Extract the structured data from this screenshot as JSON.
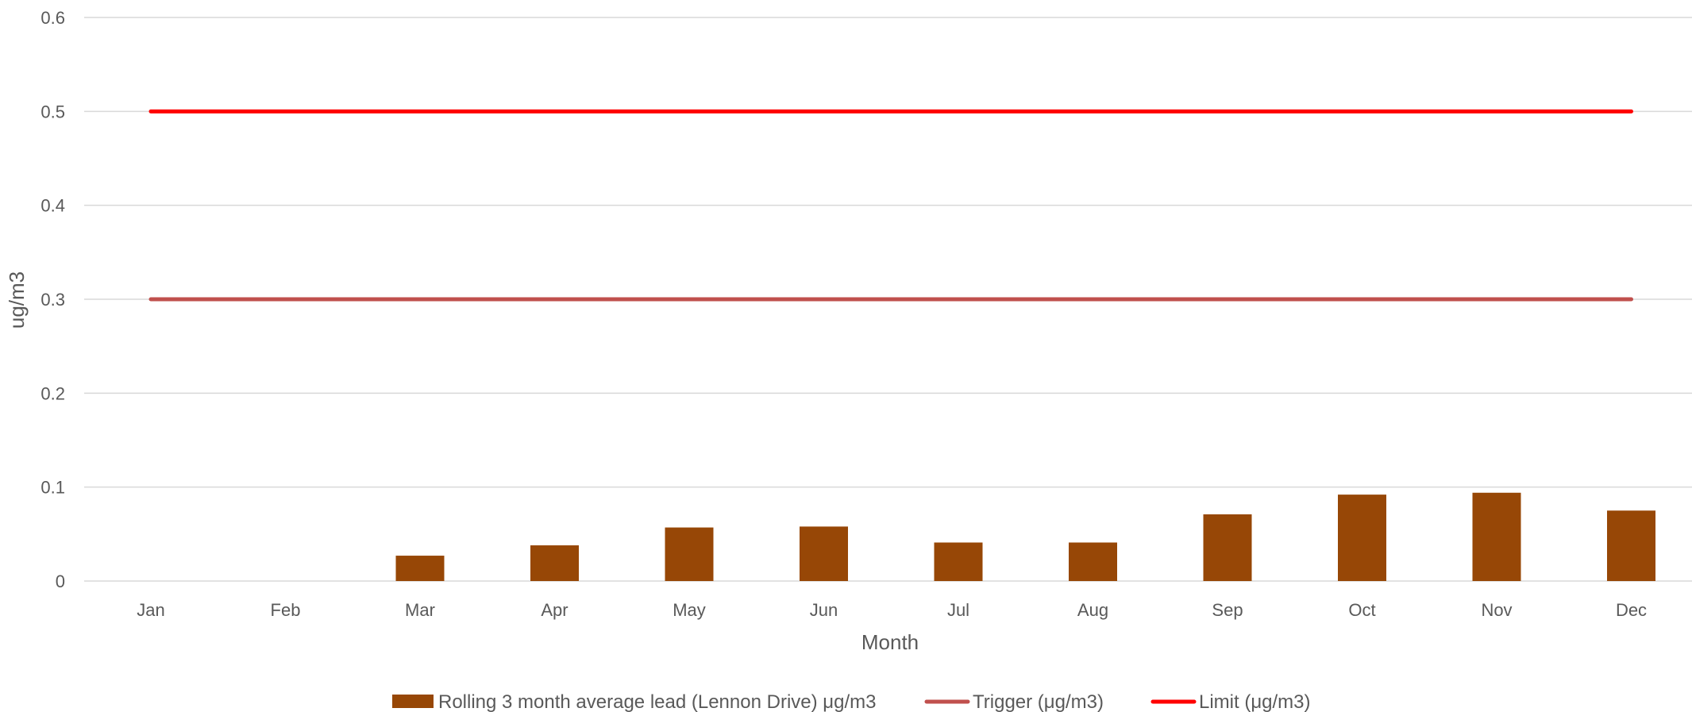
{
  "chart_data": {
    "type": "bar",
    "categories": [
      "Jan",
      "Feb",
      "Mar",
      "Apr",
      "May",
      "Jun",
      "Jul",
      "Aug",
      "Sep",
      "Oct",
      "Nov",
      "Dec"
    ],
    "series": [
      {
        "name": "Rolling 3 month average lead (Lennon Drive) μg/m3",
        "type": "bar",
        "color": "#974706",
        "values": [
          null,
          null,
          0.027,
          0.038,
          0.057,
          0.058,
          0.041,
          0.041,
          0.071,
          0.092,
          0.094,
          0.075
        ]
      },
      {
        "name": "Trigger (μg/m3)",
        "type": "line",
        "color": "#C0504D",
        "values": [
          0.3,
          0.3,
          0.3,
          0.3,
          0.3,
          0.3,
          0.3,
          0.3,
          0.3,
          0.3,
          0.3,
          0.3
        ]
      },
      {
        "name": "Limit (μg/m3)",
        "type": "line",
        "color": "#FF0000",
        "values": [
          0.5,
          0.5,
          0.5,
          0.5,
          0.5,
          0.5,
          0.5,
          0.5,
          0.5,
          0.5,
          0.5,
          0.5
        ]
      }
    ],
    "xlabel": "Month",
    "ylabel": "ug/m3",
    "ylim": [
      0,
      0.6
    ],
    "yticks": [
      "0",
      "0.1",
      "0.2",
      "0.3",
      "0.4",
      "0.5",
      "0.6"
    ],
    "grid": true,
    "legend_position": "bottom"
  }
}
